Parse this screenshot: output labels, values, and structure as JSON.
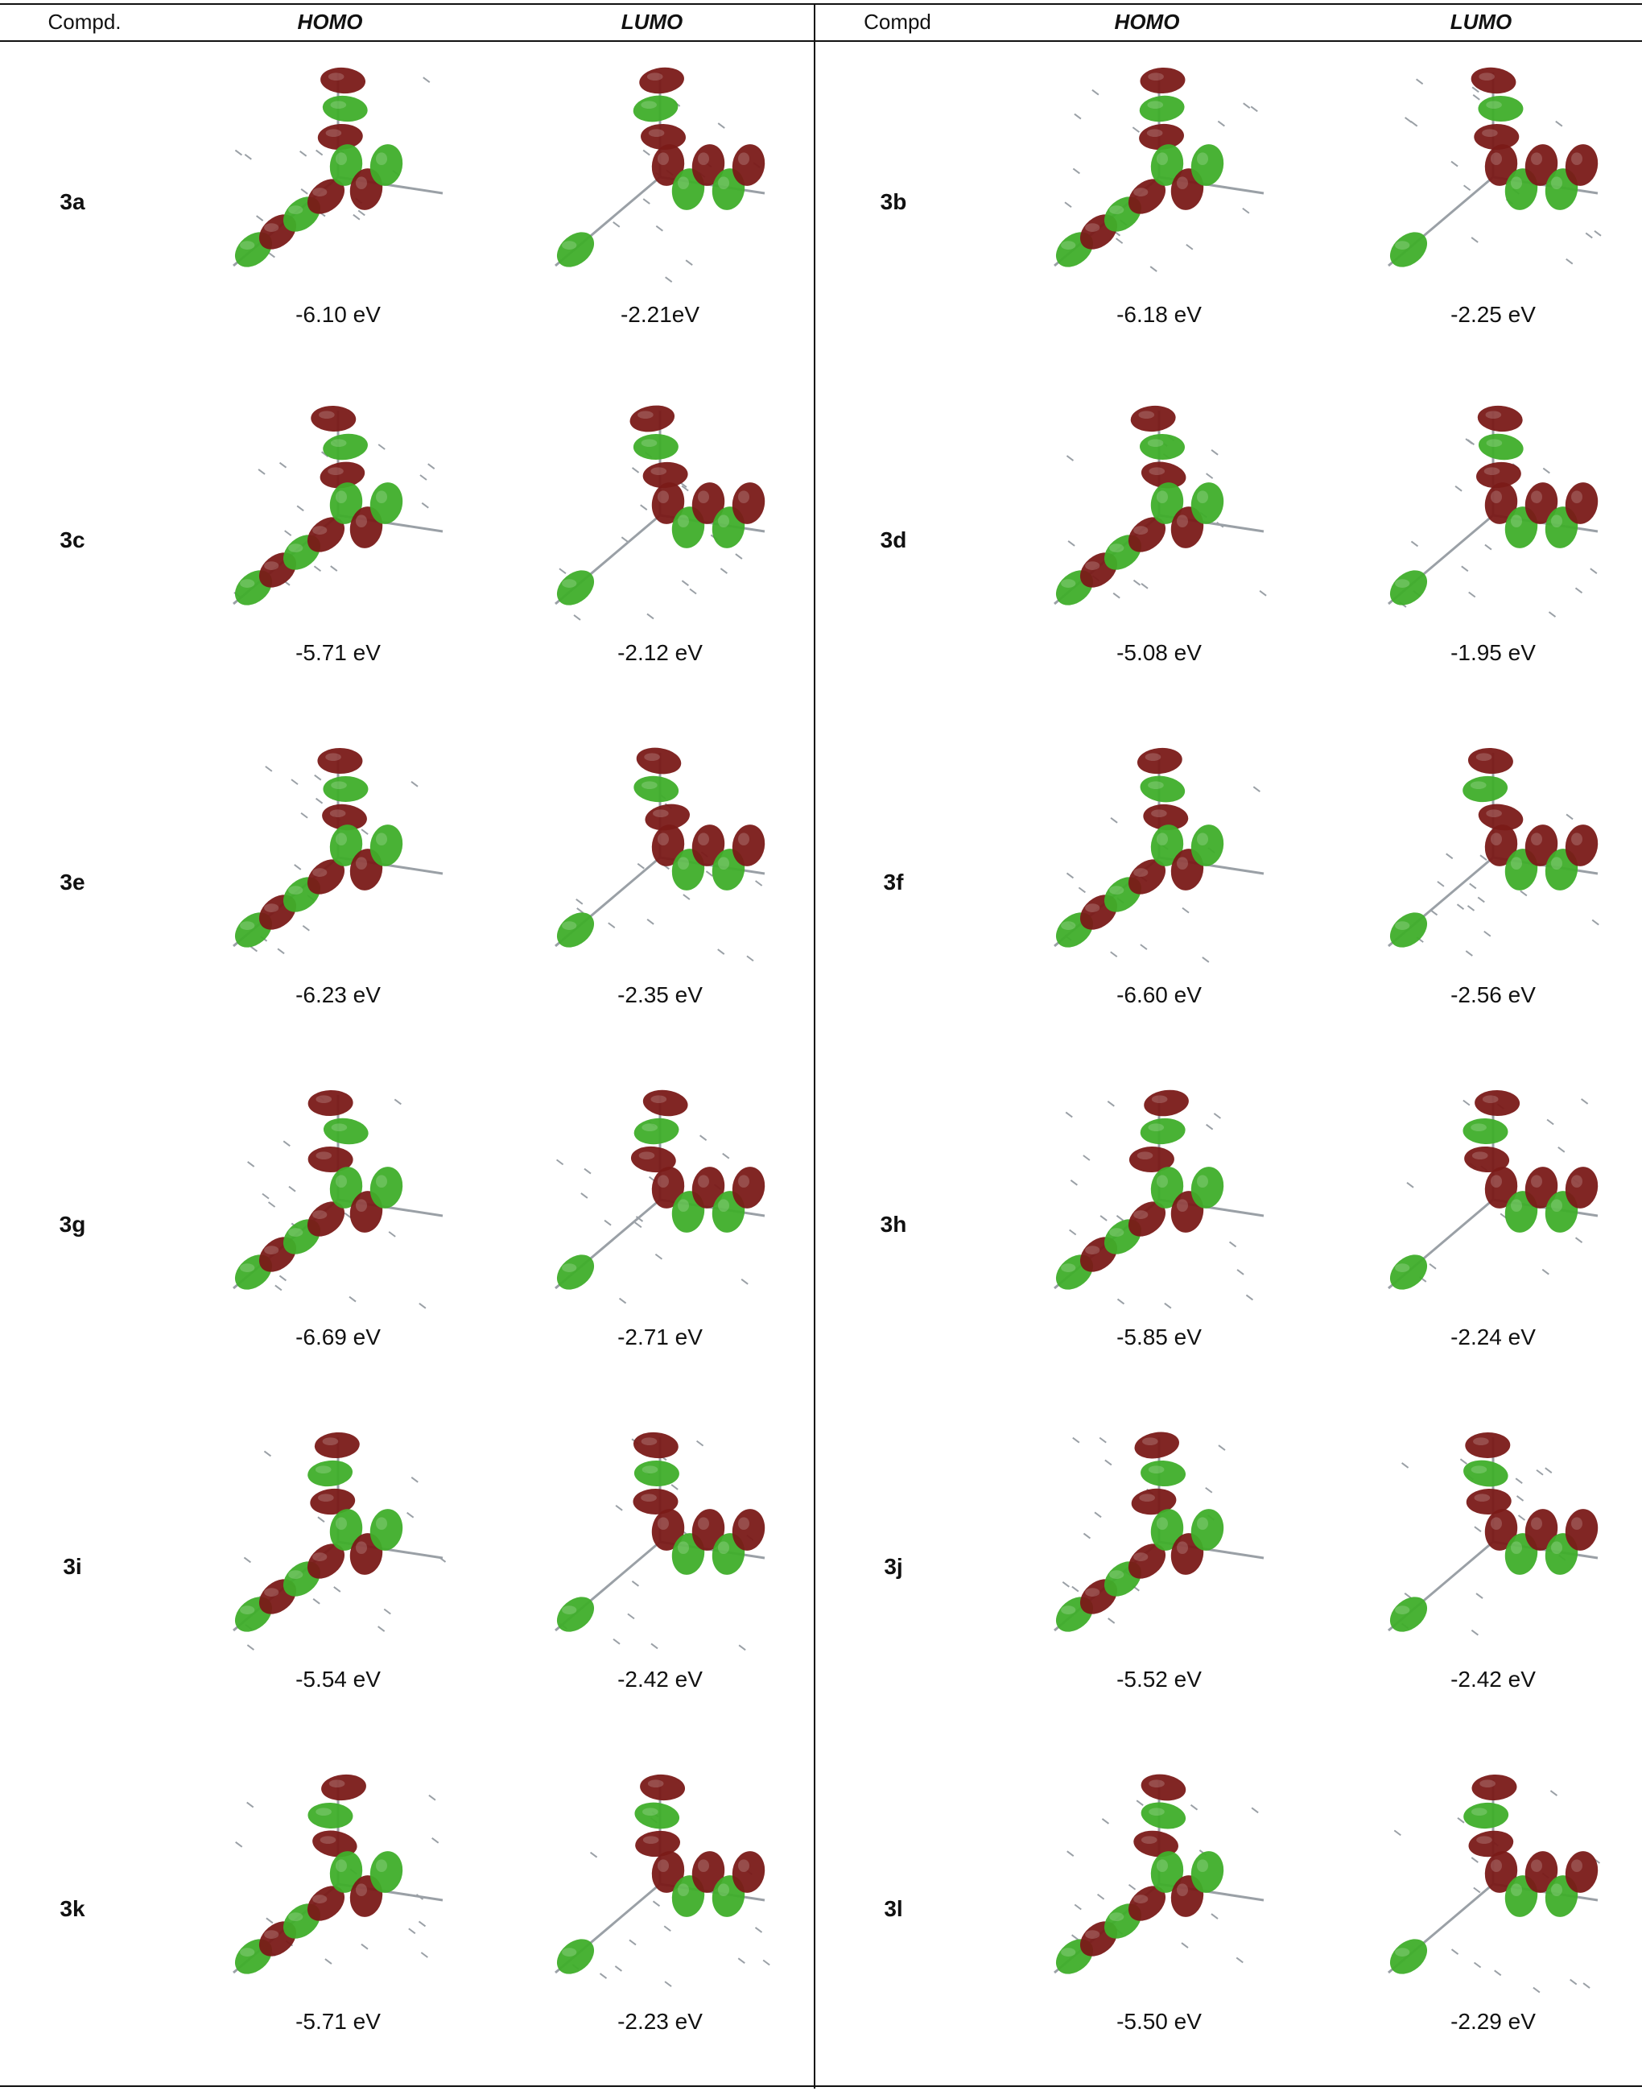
{
  "header": {
    "left_compd": "Compd.",
    "left_homo": "HOMO",
    "left_lumo": "LUMO",
    "right_compd": "Compd",
    "right_homo": "HOMO",
    "right_lumo": "LUMO"
  },
  "colors": {
    "lobe_red": "#7a1a18",
    "lobe_green": "#3fae2a",
    "bond_gray": "#9aa0a6"
  },
  "rows": [
    {
      "left": {
        "id": "3a",
        "homo": "-6.10 eV",
        "lumo": "-2.21eV"
      },
      "right": {
        "id": "3b",
        "homo": "-6.18 eV",
        "lumo": "-2.25 eV"
      }
    },
    {
      "left": {
        "id": "3c",
        "homo": "-5.71 eV",
        "lumo": "-2.12 eV"
      },
      "right": {
        "id": "3d",
        "homo": "-5.08 eV",
        "lumo": "-1.95 eV"
      }
    },
    {
      "left": {
        "id": "3e",
        "homo": "-6.23 eV",
        "lumo": "-2.35 eV"
      },
      "right": {
        "id": "3f",
        "homo": "-6.60 eV",
        "lumo": "-2.56 eV"
      }
    },
    {
      "left": {
        "id": "3g",
        "homo": "-6.69 eV",
        "lumo": "-2.71 eV"
      },
      "right": {
        "id": "3h",
        "homo": "-5.85 eV",
        "lumo": "-2.24 eV"
      }
    },
    {
      "left": {
        "id": "3i",
        "homo": "-5.54 eV",
        "lumo": "-2.42 eV"
      },
      "right": {
        "id": "3j",
        "homo": "-5.52 eV",
        "lumo": "-2.42 eV"
      }
    },
    {
      "left": {
        "id": "3k",
        "homo": "-5.71 eV",
        "lumo": "-2.23 eV"
      },
      "right": {
        "id": "3l",
        "homo": "-5.50 eV",
        "lumo": "-2.29 eV"
      }
    }
  ]
}
